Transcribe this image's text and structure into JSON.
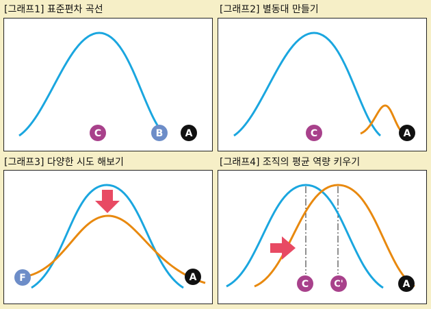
{
  "panels": [
    {
      "title": "[그래프1] 표준편차 곡선"
    },
    {
      "title": "[그래프2] 별동대 만들기"
    },
    {
      "title": "[그래프3] 다양한 시도 해보기"
    },
    {
      "title": "[그래프4] 조직의 평균 역량 키우기"
    }
  ],
  "labels": {
    "p1": {
      "c": "C",
      "b": "B",
      "a": "A"
    },
    "p2": {
      "c": "C",
      "a": "A"
    },
    "p3": {
      "f": "F",
      "a": "A"
    },
    "p4": {
      "c": "C",
      "c_prime": "C'",
      "a": "A"
    }
  },
  "colors": {
    "background": "#f6efc7",
    "blue_curve": "#1aa6df",
    "orange_curve": "#e8890f",
    "purple_badge": "#a8418b",
    "blue_badge": "#6d8dc8",
    "black_badge": "#111111",
    "arrow": "#e84a63"
  }
}
